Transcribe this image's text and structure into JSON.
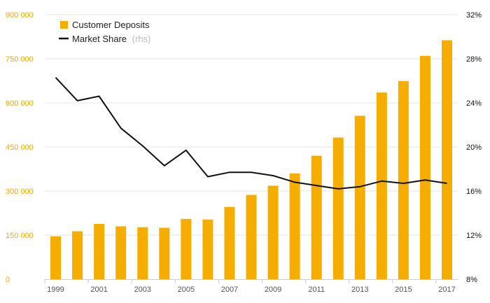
{
  "colors": {
    "bar": "#f5ad00",
    "line": "#111111",
    "left_axis_text": "#f5a800",
    "grid": "#e6e6e6"
  },
  "legend": {
    "deposits_label": "Customer Deposits",
    "share_label": "Market Share",
    "share_note": "(rhs)"
  },
  "chart_data": {
    "type": "bar",
    "title": "",
    "xlabel": "",
    "ylabel": "",
    "categories": [
      "1999",
      "2000",
      "2001",
      "2002",
      "2003",
      "2004",
      "2005",
      "2006",
      "2007",
      "2008",
      "2009",
      "2010",
      "2011",
      "2012",
      "2013",
      "2014",
      "2015",
      "2016",
      "2017"
    ],
    "x_tick_labels": [
      "1999",
      "2001",
      "2003",
      "2005",
      "2007",
      "2009",
      "2011",
      "2013",
      "2015",
      "2017"
    ],
    "series": [
      {
        "name": "Customer Deposits",
        "type": "bar",
        "axis": "left",
        "values": [
          146000,
          163000,
          188000,
          180000,
          177000,
          175000,
          205000,
          203000,
          246000,
          287000,
          318000,
          360000,
          420000,
          482000,
          556000,
          635000,
          674000,
          760000,
          813000
        ]
      },
      {
        "name": "Market Share",
        "type": "line",
        "axis": "right",
        "values": [
          26.3,
          24.2,
          24.6,
          21.7,
          20.1,
          18.3,
          19.7,
          17.3,
          17.7,
          17.7,
          17.4,
          16.8,
          16.5,
          16.2,
          16.4,
          16.9,
          16.7,
          17.0,
          16.7
        ]
      }
    ],
    "y_left": {
      "lim": [
        0,
        900000
      ],
      "ticks": [
        0,
        150000,
        300000,
        450000,
        600000,
        750000,
        900000
      ],
      "tick_labels": [
        "0",
        "150 000",
        "300 000",
        "450 000",
        "600 000",
        "750 000",
        "900 000"
      ]
    },
    "y_right": {
      "lim": [
        8,
        32
      ],
      "ticks": [
        8,
        12,
        16,
        20,
        24,
        28,
        32
      ],
      "tick_labels": [
        "8%",
        "12%",
        "16%",
        "20%",
        "24%",
        "28%",
        "32%"
      ]
    },
    "grid": true,
    "legend_position": "top-left"
  }
}
